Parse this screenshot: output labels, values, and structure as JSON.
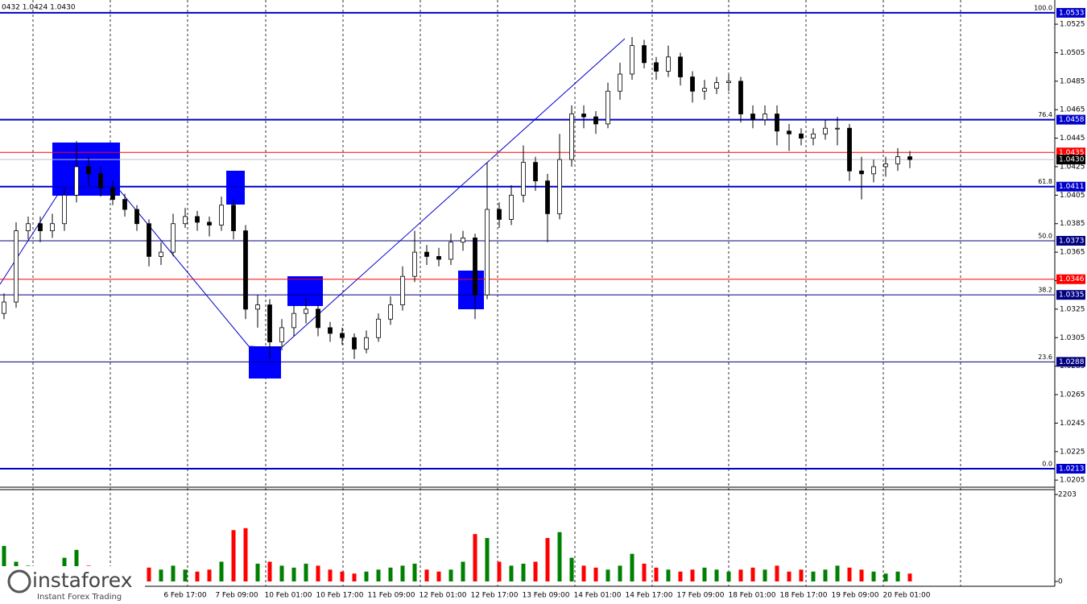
{
  "chart_data": {
    "type": "candlestick",
    "header": "0432 1.0424 1.0430",
    "x_labels": [
      "6 Feb 17:00",
      "7 Feb 09:00",
      "10 Feb 01:00",
      "10 Feb 17:00",
      "11 Feb 09:00",
      "12 Feb 01:00",
      "12 Feb 17:00",
      "13 Feb 09:00",
      "14 Feb 01:00",
      "14 Feb 17:00",
      "17 Feb 09:00",
      "18 Feb 01:00",
      "18 Feb 17:00",
      "19 Feb 09:00",
      "20 Feb 01:00"
    ],
    "open": [
      1.0322,
      1.033,
      1.038,
      1.0385,
      1.038,
      1.0385,
      1.0405,
      1.0425,
      1.042,
      1.041,
      1.0402,
      1.0395,
      1.0385,
      1.0362,
      1.0365,
      1.0385,
      1.039,
      1.0386,
      1.0384,
      1.0398,
      1.038,
      1.0325,
      1.0328,
      1.0302,
      1.0312,
      1.0322,
      1.0325,
      1.0312,
      1.0308,
      1.0305,
      1.0297,
      1.0305,
      1.0318,
      1.0328,
      1.0348,
      1.0365,
      1.0362,
      1.036,
      1.0372,
      1.0375,
      1.0335,
      1.0395,
      1.0388,
      1.0405,
      1.0428,
      1.0415,
      1.0392,
      1.043,
      1.0462,
      1.046,
      1.0455,
      1.0478,
      1.049,
      1.051,
      1.0498,
      1.0492,
      1.0502,
      1.0488,
      1.0478,
      1.048,
      1.0484,
      1.0485,
      1.0462,
      1.0458,
      1.0462,
      1.045,
      1.0448,
      1.0445,
      1.0448,
      1.0452,
      1.0452,
      1.0422,
      1.042,
      1.0425,
      1.0427,
      1.0432
    ],
    "high": [
      1.0336,
      1.0386,
      1.039,
      1.039,
      1.0392,
      1.041,
      1.0443,
      1.0432,
      1.0425,
      1.0415,
      1.0406,
      1.0398,
      1.0388,
      1.0372,
      1.0392,
      1.0396,
      1.0394,
      1.039,
      1.0404,
      1.0402,
      1.0384,
      1.0335,
      1.0332,
      1.0318,
      1.0328,
      1.0333,
      1.0328,
      1.0316,
      1.0312,
      1.0308,
      1.031,
      1.0322,
      1.0334,
      1.0355,
      1.038,
      1.037,
      1.0368,
      1.0378,
      1.038,
      1.0378,
      1.0428,
      1.04,
      1.0412,
      1.044,
      1.0432,
      1.042,
      1.0448,
      1.0468,
      1.0468,
      1.0464,
      1.0484,
      1.0498,
      1.0516,
      1.0514,
      1.0502,
      1.051,
      1.0505,
      1.0492,
      1.0486,
      1.0488,
      1.049,
      1.0488,
      1.0468,
      1.0468,
      1.0468,
      1.0455,
      1.0452,
      1.0452,
      1.0458,
      1.046,
      1.0455,
      1.0432,
      1.043,
      1.0432,
      1.0438,
      1.0436
    ],
    "low": [
      1.0318,
      1.0326,
      1.0374,
      1.0372,
      1.0375,
      1.038,
      1.04,
      1.0412,
      1.0404,
      1.0398,
      1.039,
      1.038,
      1.0355,
      1.0356,
      1.0362,
      1.0382,
      1.038,
      1.0376,
      1.038,
      1.0374,
      1.0318,
      1.0312,
      1.029,
      1.0296,
      1.0306,
      1.0315,
      1.0306,
      1.0302,
      1.03,
      1.029,
      1.0294,
      1.0302,
      1.0314,
      1.0324,
      1.0344,
      1.0356,
      1.0355,
      1.0356,
      1.0366,
      1.0318,
      1.0332,
      1.0382,
      1.0384,
      1.04,
      1.0408,
      1.0372,
      1.0388,
      1.0425,
      1.0452,
      1.0448,
      1.0452,
      1.0472,
      1.0486,
      1.0494,
      1.0486,
      1.0488,
      1.0482,
      1.047,
      1.0472,
      1.0476,
      1.0478,
      1.0456,
      1.0452,
      1.0454,
      1.044,
      1.0436,
      1.044,
      1.044,
      1.0444,
      1.044,
      1.0415,
      1.0402,
      1.0414,
      1.0418,
      1.0422,
      1.0424
    ],
    "close": [
      1.033,
      1.038,
      1.0385,
      1.038,
      1.0385,
      1.0405,
      1.0425,
      1.042,
      1.041,
      1.0402,
      1.0395,
      1.0385,
      1.0362,
      1.0365,
      1.0385,
      1.039,
      1.0386,
      1.0384,
      1.0398,
      1.038,
      1.0325,
      1.0328,
      1.0302,
      1.0312,
      1.0322,
      1.0325,
      1.0312,
      1.0308,
      1.0305,
      1.0297,
      1.0305,
      1.0318,
      1.0328,
      1.0348,
      1.0365,
      1.0362,
      1.036,
      1.0372,
      1.0375,
      1.0335,
      1.0395,
      1.0388,
      1.0405,
      1.0428,
      1.0415,
      1.0392,
      1.043,
      1.0462,
      1.046,
      1.0455,
      1.0478,
      1.049,
      1.051,
      1.0498,
      1.0492,
      1.0502,
      1.0488,
      1.0478,
      1.048,
      1.0484,
      1.0485,
      1.0462,
      1.0458,
      1.0462,
      1.045,
      1.0448,
      1.0445,
      1.0448,
      1.0452,
      1.0452,
      1.0422,
      1.042,
      1.0425,
      1.0427,
      1.0432,
      1.043
    ],
    "ylim": [
      1.02,
      1.0542
    ],
    "yticks": [
      1.0205,
      1.0225,
      1.0245,
      1.0265,
      1.0285,
      1.0305,
      1.0325,
      1.0345,
      1.0365,
      1.0385,
      1.0405,
      1.0425,
      1.0445,
      1.0465,
      1.0485,
      1.0505,
      1.0525
    ],
    "levels": [
      {
        "price": 1.0533,
        "fib": "100.0",
        "color": "#0000cc",
        "width": 2
      },
      {
        "price": 1.0458,
        "fib": "76.4",
        "color": "#0000cc",
        "width": 2
      },
      {
        "price": 1.0435,
        "color": "#ff0000",
        "width": 1
      },
      {
        "price": 1.043,
        "price_label": "1.0430",
        "color": "#c0c0c0",
        "box": "#000000",
        "width": 1
      },
      {
        "price": 1.0411,
        "fib": "61.8",
        "color": "#0000cc",
        "width": 2
      },
      {
        "price": 1.0373,
        "fib": "50.0",
        "color": "#000080",
        "width": 1
      },
      {
        "price": 1.0346,
        "color": "#ff0000",
        "width": 1
      },
      {
        "price": 1.0335,
        "fib": "38.2",
        "color": "#000080",
        "width": 1
      },
      {
        "price": 1.0288,
        "fib": "23.6",
        "color": "#000080",
        "width": 1
      },
      {
        "price": 1.0213,
        "fib": "0.0",
        "color": "#0000cc",
        "width": 2
      }
    ],
    "volume": {
      "values": [
        900,
        500,
        400,
        350,
        300,
        600,
        800,
        400,
        350,
        300,
        250,
        300,
        350,
        300,
        400,
        300,
        250,
        300,
        500,
        1300,
        1350,
        450,
        500,
        400,
        350,
        450,
        400,
        300,
        250,
        200,
        250,
        300,
        350,
        400,
        450,
        300,
        250,
        300,
        500,
        1200,
        1100,
        500,
        400,
        450,
        500,
        1100,
        1250,
        600,
        400,
        350,
        300,
        400,
        700,
        450,
        350,
        300,
        250,
        300,
        350,
        300,
        250,
        300,
        350,
        300,
        400,
        250,
        300,
        250,
        300,
        400,
        350,
        300,
        250,
        200,
        250,
        200
      ],
      "up_color": "#008000",
      "down_color": "#ff0000",
      "ylim": [
        0,
        2203
      ],
      "yticks": [
        0,
        2203
      ]
    },
    "logo": {
      "name": "instaforex",
      "tagline": "Instant Forex Trading"
    }
  }
}
